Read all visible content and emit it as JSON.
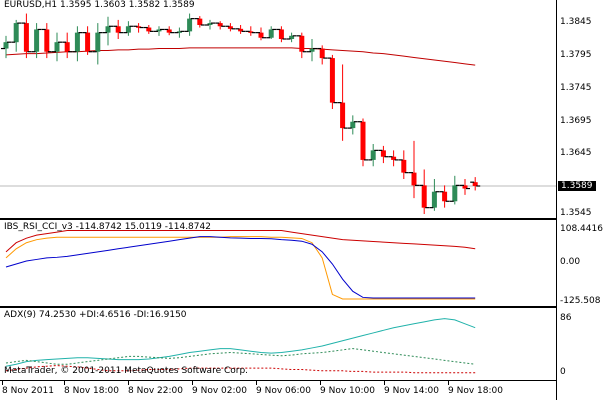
{
  "main": {
    "symbol": "EURUSD,H1",
    "ohlc": "1.3595 1.3603 1.3582 1.3589",
    "current_price": "1.3589",
    "price_labels": [
      "1.3845",
      "1.3795",
      "1.3745",
      "1.3695",
      "1.3645",
      "1.3589",
      "1.3545"
    ]
  },
  "oscillator": {
    "title": "IBS_RSI_CCI_v3 -114.8742 15.0119 -114.8742",
    "labels": [
      "108.4416",
      "0.00",
      "-125.508"
    ]
  },
  "adx": {
    "title": "ADX(9) 74.2530 +DI:4.6516 -DI:16.9150",
    "labels": [
      "86",
      "0"
    ]
  },
  "copyright": "MetaTrader, © 2001-2011 MetaQuotes Software Corp.",
  "time_labels": [
    "8 Nov 2011",
    "8 Nov 18:00",
    "8 Nov 22:00",
    "9 Nov 02:00",
    "9 Nov 06:00",
    "9 Nov 10:00",
    "9 Nov 14:00",
    "9 Nov 18:00"
  ],
  "colors": {
    "bull": "#2e8b57",
    "bear": "#ff0000",
    "ma": "#c00000",
    "osc_red": "#cc0000",
    "osc_orange": "#ff9900",
    "osc_blue": "#0000cc",
    "adx_line": "#20b2aa",
    "plus_di": "#2e8b57",
    "minus_di": "#cc0000"
  },
  "chart_data": [
    {
      "type": "candlestick",
      "title": "EURUSD,H1",
      "ylim": [
        1.3545,
        1.3875
      ],
      "candles": [
        {
          "o": 1.3805,
          "h": 1.3825,
          "l": 1.379,
          "c": 1.3815
        },
        {
          "o": 1.3815,
          "h": 1.385,
          "l": 1.38,
          "c": 1.3845
        },
        {
          "o": 1.3845,
          "h": 1.386,
          "l": 1.379,
          "c": 1.38
        },
        {
          "o": 1.38,
          "h": 1.3845,
          "l": 1.379,
          "c": 1.3835
        },
        {
          "o": 1.3835,
          "h": 1.3845,
          "l": 1.379,
          "c": 1.38
        },
        {
          "o": 1.38,
          "h": 1.383,
          "l": 1.3785,
          "c": 1.3815
        },
        {
          "o": 1.3815,
          "h": 1.383,
          "l": 1.379,
          "c": 1.38
        },
        {
          "o": 1.38,
          "h": 1.384,
          "l": 1.3785,
          "c": 1.383
        },
        {
          "o": 1.383,
          "h": 1.384,
          "l": 1.3795,
          "c": 1.38
        },
        {
          "o": 1.38,
          "h": 1.3845,
          "l": 1.378,
          "c": 1.383
        },
        {
          "o": 1.383,
          "h": 1.3855,
          "l": 1.381,
          "c": 1.384
        },
        {
          "o": 1.384,
          "h": 1.385,
          "l": 1.382,
          "c": 1.383
        },
        {
          "o": 1.383,
          "h": 1.3848,
          "l": 1.3825,
          "c": 1.384
        },
        {
          "o": 1.384,
          "h": 1.3845,
          "l": 1.383,
          "c": 1.3838
        },
        {
          "o": 1.3838,
          "h": 1.3842,
          "l": 1.3828,
          "c": 1.3832
        },
        {
          "o": 1.3832,
          "h": 1.384,
          "l": 1.3825,
          "c": 1.3835
        },
        {
          "o": 1.3835,
          "h": 1.384,
          "l": 1.3826,
          "c": 1.383
        },
        {
          "o": 1.383,
          "h": 1.3838,
          "l": 1.3822,
          "c": 1.3832
        },
        {
          "o": 1.3832,
          "h": 1.386,
          "l": 1.3825,
          "c": 1.3852
        },
        {
          "o": 1.3852,
          "h": 1.3856,
          "l": 1.3838,
          "c": 1.3842
        },
        {
          "o": 1.3842,
          "h": 1.385,
          "l": 1.3835,
          "c": 1.3845
        },
        {
          "o": 1.3845,
          "h": 1.3848,
          "l": 1.3835,
          "c": 1.384
        },
        {
          "o": 1.384,
          "h": 1.3845,
          "l": 1.3832,
          "c": 1.3836
        },
        {
          "o": 1.3836,
          "h": 1.3842,
          "l": 1.3828,
          "c": 1.3832
        },
        {
          "o": 1.3832,
          "h": 1.384,
          "l": 1.3825,
          "c": 1.383
        },
        {
          "o": 1.383,
          "h": 1.3838,
          "l": 1.3818,
          "c": 1.3822
        },
        {
          "o": 1.3822,
          "h": 1.384,
          "l": 1.382,
          "c": 1.3835
        },
        {
          "o": 1.3835,
          "h": 1.384,
          "l": 1.3815,
          "c": 1.382
        },
        {
          "o": 1.382,
          "h": 1.383,
          "l": 1.3815,
          "c": 1.3825
        },
        {
          "o": 1.3825,
          "h": 1.383,
          "l": 1.379,
          "c": 1.38
        },
        {
          "o": 1.38,
          "h": 1.382,
          "l": 1.3785,
          "c": 1.3805
        },
        {
          "o": 1.3805,
          "h": 1.381,
          "l": 1.378,
          "c": 1.379
        },
        {
          "o": 1.379,
          "h": 1.3795,
          "l": 1.371,
          "c": 1.372
        },
        {
          "o": 1.372,
          "h": 1.378,
          "l": 1.366,
          "c": 1.368
        },
        {
          "o": 1.368,
          "h": 1.37,
          "l": 1.367,
          "c": 1.369
        },
        {
          "o": 1.369,
          "h": 1.3695,
          "l": 1.362,
          "c": 1.363
        },
        {
          "o": 1.363,
          "h": 1.3655,
          "l": 1.362,
          "c": 1.3645
        },
        {
          "o": 1.3645,
          "h": 1.3652,
          "l": 1.3625,
          "c": 1.3635
        },
        {
          "o": 1.3635,
          "h": 1.3645,
          "l": 1.362,
          "c": 1.363
        },
        {
          "o": 1.363,
          "h": 1.3645,
          "l": 1.36,
          "c": 1.361
        },
        {
          "o": 1.361,
          "h": 1.366,
          "l": 1.357,
          "c": 1.359
        },
        {
          "o": 1.359,
          "h": 1.3615,
          "l": 1.3545,
          "c": 1.3555
        },
        {
          "o": 1.3555,
          "h": 1.36,
          "l": 1.355,
          "c": 1.358
        },
        {
          "o": 1.358,
          "h": 1.359,
          "l": 1.3555,
          "c": 1.3565
        },
        {
          "o": 1.3565,
          "h": 1.3605,
          "l": 1.356,
          "c": 1.359
        },
        {
          "o": 1.359,
          "h": 1.36,
          "l": 1.3575,
          "c": 1.3585
        },
        {
          "o": 1.3595,
          "h": 1.3603,
          "l": 1.3582,
          "c": 1.3589
        }
      ],
      "moving_average": [
        1.3795,
        1.3796,
        1.3797,
        1.3797,
        1.3798,
        1.3799,
        1.38,
        1.38,
        1.3801,
        1.3802,
        1.3802,
        1.3803,
        1.3803,
        1.3804,
        1.3804,
        1.3805,
        1.3805,
        1.3805,
        1.3806,
        1.3806,
        1.3806,
        1.3806,
        1.3806,
        1.3806,
        1.3806,
        1.3806,
        1.3806,
        1.3806,
        1.3806,
        1.3805,
        1.3805,
        1.3804,
        1.3803,
        1.3802,
        1.3801,
        1.38,
        1.3798,
        1.3797,
        1.3795,
        1.3793,
        1.3791,
        1.3789,
        1.3787,
        1.3785,
        1.3783,
        1.3781,
        1.3779
      ]
    },
    {
      "type": "line",
      "title": "IBS_RSI_CCI_v3 -114.8742 15.0119 -114.8742",
      "ylim": [
        -135,
        115
      ],
      "series": [
        {
          "values": [
            30,
            60,
            75,
            85,
            90,
            95,
            100,
            100,
            100,
            100,
            100,
            100,
            100,
            100,
            100,
            100,
            100,
            100,
            100,
            100,
            100,
            100,
            100,
            100,
            100,
            100,
            100,
            100,
            95,
            90,
            85,
            80,
            75,
            70,
            68,
            66,
            64,
            62,
            60,
            58,
            56,
            54,
            52,
            50,
            48,
            45,
            40
          ]
        },
        {
          "values": [
            10,
            40,
            60,
            70,
            75,
            78,
            78,
            78,
            78,
            78,
            78,
            78,
            78,
            78,
            78,
            78,
            78,
            78,
            78,
            78,
            78,
            78,
            80,
            80,
            80,
            80,
            78,
            78,
            76,
            74,
            60,
            10,
            -110,
            -125,
            -125,
            -125,
            -125,
            -125,
            -125,
            -125,
            -125,
            -125,
            -125,
            -125,
            -125,
            -125,
            -125
          ]
        },
        {
          "values": [
            -20,
            -10,
            0,
            5,
            10,
            12,
            15,
            20,
            25,
            30,
            35,
            40,
            45,
            50,
            55,
            60,
            65,
            70,
            75,
            80,
            80,
            78,
            76,
            75,
            74,
            74,
            73,
            70,
            68,
            65,
            55,
            30,
            -10,
            -60,
            -100,
            -120,
            -122,
            -122,
            -122,
            -122,
            -122,
            -122,
            -122,
            -122,
            -122,
            -122,
            -122
          ]
        }
      ]
    },
    {
      "type": "line",
      "title": "ADX(9) 74.2530 +DI:4.6516 -DI:16.9150",
      "ylim": [
        0,
        95
      ],
      "series": [
        {
          "values": [
            15,
            18,
            22,
            24,
            25,
            26,
            27,
            28,
            28,
            27,
            26,
            25,
            25,
            25,
            26,
            28,
            30,
            33,
            36,
            38,
            40,
            42,
            42,
            40,
            38,
            36,
            35,
            36,
            38,
            40,
            43,
            46,
            50,
            54,
            58,
            62,
            66,
            70,
            74,
            77,
            80,
            83,
            86,
            88,
            86,
            80,
            74
          ]
        },
        {
          "values": [
            20,
            22,
            24,
            22,
            20,
            18,
            18,
            20,
            22,
            24,
            26,
            28,
            30,
            30,
            29,
            28,
            27,
            28,
            30,
            32,
            34,
            35,
            36,
            35,
            34,
            33,
            32,
            31,
            32,
            34,
            35,
            36,
            38,
            40,
            42,
            40,
            38,
            36,
            34,
            32,
            30,
            28,
            26,
            24,
            22,
            20,
            18
          ]
        },
        {
          "values": [
            8,
            10,
            12,
            14,
            15,
            16,
            15,
            14,
            12,
            10,
            8,
            8,
            8,
            9,
            10,
            10,
            10,
            11,
            12,
            12,
            12,
            12,
            12,
            12,
            12,
            12,
            12,
            11,
            10,
            10,
            9,
            8,
            8,
            8,
            7,
            7,
            6,
            6,
            6,
            6,
            5,
            5,
            5,
            5,
            5,
            5,
            5
          ]
        }
      ]
    }
  ]
}
